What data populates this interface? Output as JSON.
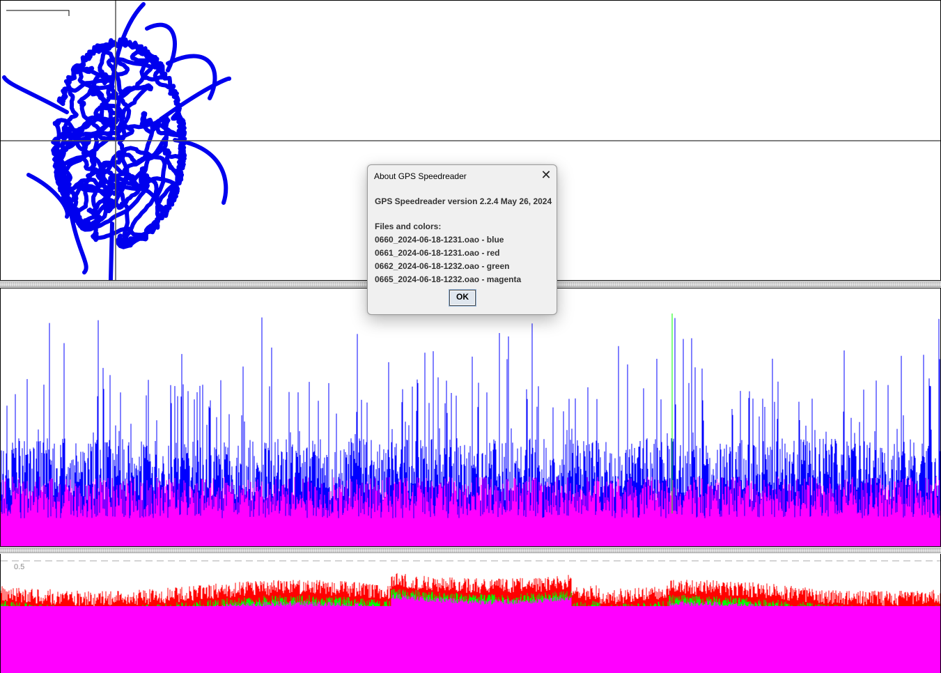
{
  "dialog": {
    "title": "About GPS Speedreader",
    "close_icon": "close-icon",
    "version_line": "GPS Speedreader version 2.2.4 May 26, 2024",
    "files_heading": "Files and colors:",
    "files": [
      {
        "label": "0660_2024-06-18-1231.oao - blue",
        "color": "#0000ff"
      },
      {
        "label": "0661_2024-06-18-1231.oao - red",
        "color": "#ff0000"
      },
      {
        "label": "0662_2024-06-18-1232.oao - green",
        "color": "#00ff00"
      },
      {
        "label": "0665_2024-06-18-1232.oao - magenta",
        "color": "#ff00ff"
      }
    ],
    "ok_label": "OK"
  },
  "error_panel": {
    "scale_label": "0.5"
  },
  "colors": {
    "track": "#0000ee",
    "blue": "#0000ff",
    "red": "#ff0000",
    "green": "#00ff00",
    "magenta": "#ff00ff",
    "axis": "#555555"
  }
}
